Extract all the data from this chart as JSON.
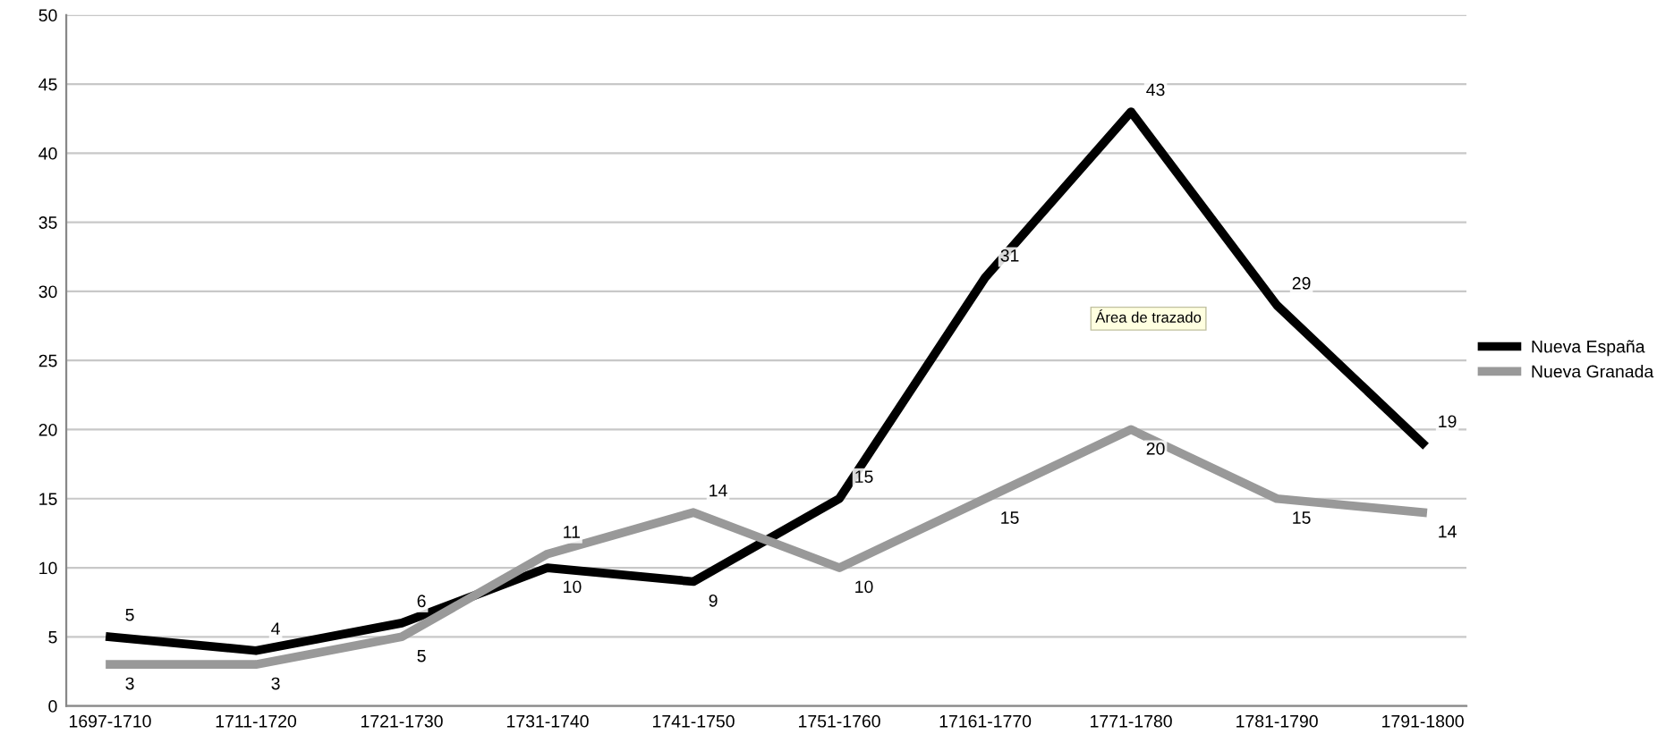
{
  "chart_data": {
    "type": "line",
    "categories": [
      "1697-1710",
      "1711-1720",
      "1721-1730",
      "1731-1740",
      "1741-1750",
      "1751-1760",
      "17161-1770",
      "1771-1780",
      "1781-1790",
      "1791-1800"
    ],
    "series": [
      {
        "name": "Nueva España",
        "color": "#000000",
        "values": [
          5,
          4,
          6,
          10,
          9,
          15,
          31,
          43,
          29,
          19
        ]
      },
      {
        "name": "Nueva Granada",
        "color": "#999999",
        "values": [
          3,
          3,
          5,
          11,
          14,
          10,
          15,
          20,
          15,
          14
        ]
      }
    ],
    "ylim": [
      0,
      50
    ],
    "yticks": [
      0,
      5,
      10,
      15,
      20,
      25,
      30,
      35,
      40,
      45,
      50
    ],
    "grid": "y",
    "legend": "right",
    "data_labels": true,
    "marker": "none",
    "line_style": "solid",
    "annotations": [
      "Área de trazado"
    ]
  }
}
